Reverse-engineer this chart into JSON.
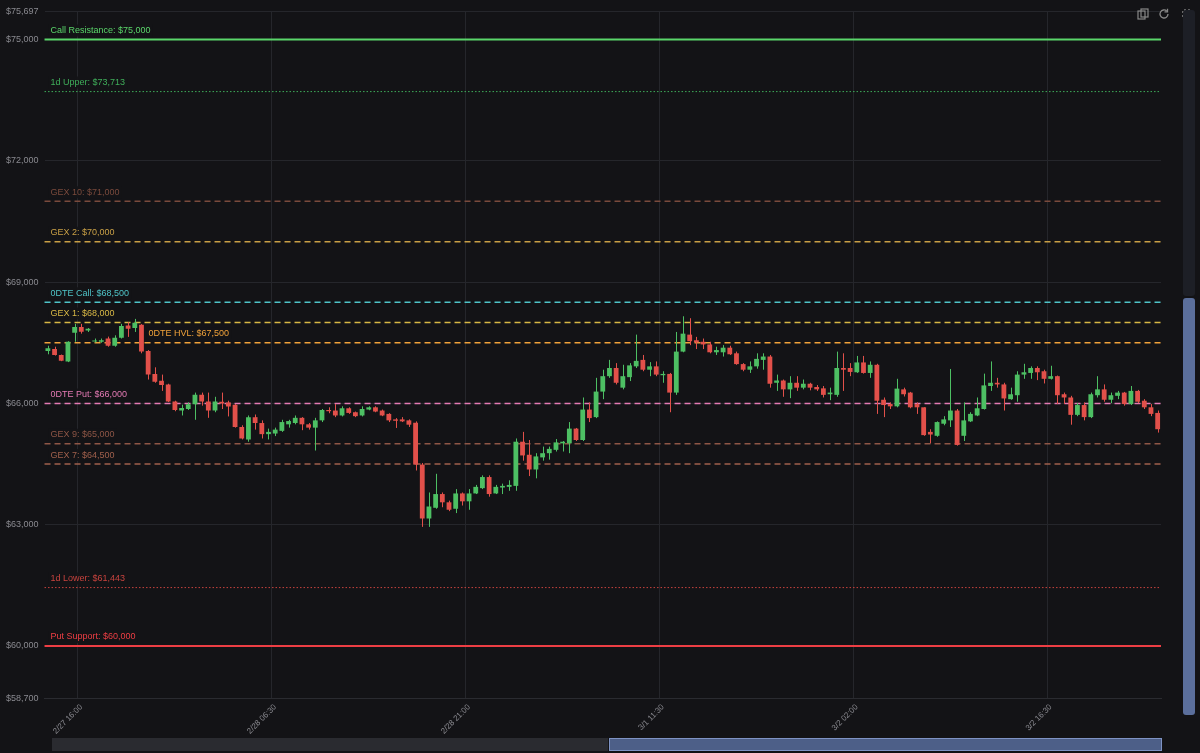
{
  "chart_data": {
    "type": "candlestick",
    "categories": [
      null,
      null,
      null,
      null,
      null,
      "2/27 16:00",
      null,
      null,
      null,
      null,
      null,
      null,
      null,
      null,
      null,
      null,
      null,
      null,
      null,
      null,
      null,
      null,
      null,
      null,
      null,
      null,
      null,
      null,
      null,
      null,
      null,
      null,
      null,
      null,
      "2/28 06:30",
      null,
      null,
      null,
      null,
      null,
      null,
      null,
      null,
      null,
      null,
      null,
      null,
      null,
      null,
      null,
      null,
      null,
      null,
      null,
      null,
      null,
      null,
      null,
      null,
      null,
      null,
      null,
      null,
      "2/28 21:00",
      null,
      null,
      null,
      null,
      null,
      null,
      null,
      null,
      null,
      null,
      null,
      null,
      null,
      null,
      null,
      null,
      null,
      null,
      null,
      null,
      null,
      null,
      null,
      null,
      null,
      null,
      null,
      null,
      "3/1 11:30",
      null,
      null,
      null,
      null,
      null,
      null,
      null,
      null,
      null,
      null,
      null,
      null,
      null,
      null,
      null,
      null,
      null,
      null,
      null,
      null,
      null,
      null,
      null,
      null,
      null,
      null,
      null,
      null,
      "3/2 02:00",
      null,
      null,
      null,
      null,
      null,
      null,
      null,
      null,
      null,
      null,
      null,
      null,
      null,
      null,
      null,
      null,
      null,
      null,
      null,
      null,
      null,
      null,
      null,
      null,
      null,
      null,
      null,
      null,
      "3/2 16:30",
      null,
      null,
      null,
      null,
      null,
      null,
      null,
      null,
      null,
      null,
      null,
      null,
      null,
      null,
      null,
      null
    ],
    "ohlc": [
      [
        67295,
        67426,
        67215,
        67361
      ],
      [
        67344,
        67402,
        67183,
        67198
      ],
      [
        67198,
        67208,
        67045,
        67052
      ],
      [
        67038,
        67538,
        67021,
        67524
      ],
      [
        67750,
        67968,
        67524,
        67888
      ],
      [
        67888,
        67968,
        67725,
        67774
      ],
      [
        67805,
        67864,
        67767,
        67847
      ],
      [
        67531,
        67604,
        67507,
        67555
      ],
      [
        67524,
        67604,
        67500,
        67562
      ],
      [
        67604,
        67652,
        67402,
        67426
      ],
      [
        67426,
        67684,
        67402,
        67621
      ],
      [
        67621,
        67968,
        67604,
        67912
      ],
      [
        67927,
        68010,
        67645,
        67847
      ],
      [
        67864,
        68090,
        67767,
        67993
      ],
      [
        67944,
        67961,
        67239,
        67281
      ],
      [
        67295,
        67319,
        66590,
        66712
      ],
      [
        66729,
        66892,
        66510,
        66535
      ],
      [
        66559,
        66712,
        66309,
        66454
      ],
      [
        66469,
        66486,
        66032,
        66049
      ],
      [
        66049,
        66066,
        65806,
        65837
      ],
      [
        65823,
        65968,
        65701,
        65886
      ],
      [
        65861,
        66024,
        65837,
        65976
      ],
      [
        65976,
        66267,
        65594,
        66211
      ],
      [
        66211,
        66267,
        65944,
        66049
      ],
      [
        66049,
        66267,
        65643,
        65823
      ],
      [
        65823,
        66163,
        65781,
        66049
      ],
      [
        66041,
        66267,
        65861,
        66000
      ],
      [
        66024,
        66066,
        65677,
        65920
      ],
      [
        65968,
        65983,
        65400,
        65417
      ],
      [
        65417,
        65458,
        65108,
        65132
      ],
      [
        65108,
        65701,
        65052,
        65660
      ],
      [
        65660,
        65725,
        65351,
        65514
      ],
      [
        65514,
        65580,
        65132,
        65239
      ],
      [
        65239,
        65376,
        65108,
        65295
      ],
      [
        65254,
        65400,
        65191,
        65351
      ],
      [
        65320,
        65594,
        65295,
        65538
      ],
      [
        65482,
        65594,
        65400,
        65563
      ],
      [
        65514,
        65701,
        65482,
        65643
      ],
      [
        65643,
        65660,
        65337,
        65482
      ],
      [
        65482,
        65514,
        65351,
        65400
      ],
      [
        65400,
        65643,
        64834,
        65580
      ],
      [
        65580,
        65861,
        65538,
        65837
      ],
      [
        65837,
        65903,
        65757,
        65806
      ],
      [
        65823,
        65983,
        65660,
        65701
      ],
      [
        65701,
        65927,
        65677,
        65879
      ],
      [
        65879,
        65903,
        65740,
        65764
      ],
      [
        65781,
        65798,
        65660,
        65684
      ],
      [
        65701,
        65927,
        65677,
        65861
      ],
      [
        65847,
        65927,
        65830,
        65903
      ],
      [
        65903,
        65927,
        65781,
        65798
      ],
      [
        65823,
        65847,
        65684,
        65701
      ],
      [
        65740,
        65757,
        65538,
        65580
      ],
      [
        65604,
        65636,
        65392,
        65570
      ],
      [
        65604,
        65660,
        65538,
        65555
      ],
      [
        65580,
        65604,
        65417,
        65473
      ],
      [
        65521,
        65555,
        64340,
        64486
      ],
      [
        64486,
        64525,
        62945,
        63150
      ],
      [
        63150,
        63796,
        62945,
        63449
      ],
      [
        63417,
        64258,
        63393,
        63757
      ],
      [
        63757,
        63796,
        63431,
        63553
      ],
      [
        63553,
        63594,
        63334,
        63368
      ],
      [
        63393,
        63879,
        63286,
        63772
      ],
      [
        63772,
        63796,
        63473,
        63577
      ],
      [
        63577,
        63879,
        63368,
        63772
      ],
      [
        63772,
        63983,
        63757,
        63935
      ],
      [
        63903,
        64219,
        63879,
        64178
      ],
      [
        64178,
        64219,
        63692,
        63757
      ],
      [
        63772,
        63983,
        63757,
        63935
      ],
      [
        63918,
        64015,
        63757,
        63959
      ],
      [
        63935,
        64097,
        63837,
        63983
      ],
      [
        63959,
        65132,
        63837,
        65052
      ],
      [
        65052,
        65295,
        64583,
        64712
      ],
      [
        64729,
        65094,
        64202,
        64365
      ],
      [
        64365,
        64768,
        64146,
        64688
      ],
      [
        64664,
        64931,
        64583,
        64768
      ],
      [
        64768,
        64931,
        64608,
        64875
      ],
      [
        64851,
        65118,
        64809,
        65035
      ],
      [
        65011,
        65069,
        64809,
        65052
      ],
      [
        65011,
        65538,
        64768,
        65376
      ],
      [
        65376,
        65392,
        65069,
        65094
      ],
      [
        65094,
        66146,
        65069,
        65847
      ],
      [
        65847,
        66024,
        65538,
        65636
      ],
      [
        65660,
        66632,
        65636,
        66292
      ],
      [
        66292,
        66833,
        66104,
        66673
      ],
      [
        66673,
        67076,
        66632,
        66875
      ],
      [
        66875,
        66996,
        66469,
        66510
      ],
      [
        66389,
        66955,
        66347,
        66673
      ],
      [
        66649,
        66996,
        66552,
        66940
      ],
      [
        66916,
        67701,
        66875,
        67052
      ],
      [
        67076,
        67198,
        66795,
        66833
      ],
      [
        66833,
        67021,
        66673,
        66916
      ],
      [
        66916,
        67038,
        66673,
        66712
      ],
      [
        66697,
        66795,
        66510,
        66729
      ],
      [
        66729,
        66753,
        65781,
        66267
      ],
      [
        66267,
        67767,
        66211,
        67281
      ],
      [
        67281,
        68155,
        67264,
        67725
      ],
      [
        67701,
        68107,
        67441,
        67538
      ],
      [
        67562,
        67645,
        67344,
        67507
      ],
      [
        67524,
        67604,
        67344,
        67458
      ],
      [
        67458,
        67524,
        67239,
        67264
      ],
      [
        67264,
        67402,
        67198,
        67319
      ],
      [
        67264,
        67441,
        67159,
        67378
      ],
      [
        67378,
        67426,
        67198,
        67215
      ],
      [
        67239,
        67281,
        66955,
        66972
      ],
      [
        66972,
        66996,
        66795,
        66833
      ],
      [
        66833,
        67038,
        66753,
        66916
      ],
      [
        66916,
        67239,
        66858,
        67101
      ],
      [
        67076,
        67239,
        66833,
        67159
      ],
      [
        67159,
        67198,
        66389,
        66486
      ],
      [
        66510,
        66712,
        66309,
        66566
      ],
      [
        66566,
        66590,
        66163,
        66347
      ],
      [
        66347,
        66673,
        66129,
        66510
      ],
      [
        66510,
        66673,
        66309,
        66389
      ],
      [
        66389,
        66590,
        66347,
        66486
      ],
      [
        66486,
        66510,
        66323,
        66389
      ],
      [
        66406,
        66454,
        66309,
        66347
      ],
      [
        66372,
        66430,
        66146,
        66211
      ],
      [
        66226,
        66389,
        66080,
        66267
      ],
      [
        66211,
        67281,
        66163,
        66875
      ],
      [
        66875,
        67239,
        66309,
        66833
      ],
      [
        66875,
        66996,
        66673,
        66778
      ],
      [
        66770,
        67174,
        66753,
        67013
      ],
      [
        67013,
        67174,
        66736,
        66753
      ],
      [
        66753,
        67038,
        66632,
        66955
      ],
      [
        66955,
        66979,
        65740,
        66066
      ],
      [
        66090,
        66146,
        65660,
        65959
      ],
      [
        65983,
        66024,
        65861,
        65927
      ],
      [
        65927,
        66608,
        65903,
        66365
      ],
      [
        66347,
        66389,
        66170,
        66226
      ],
      [
        66267,
        66284,
        65879,
        65903
      ],
      [
        65983,
        66024,
        65740,
        65903
      ],
      [
        65903,
        65903,
        65198,
        65215
      ],
      [
        65295,
        65361,
        65011,
        65230
      ],
      [
        65198,
        65555,
        65174,
        65538
      ],
      [
        65497,
        65684,
        65458,
        65604
      ],
      [
        65580,
        66851,
        65417,
        65823
      ],
      [
        65823,
        65861,
        64955,
        64972
      ],
      [
        65198,
        66024,
        65069,
        65580
      ],
      [
        65555,
        65781,
        65538,
        65740
      ],
      [
        65701,
        66146,
        65684,
        65879
      ],
      [
        65861,
        66736,
        65847,
        66445
      ],
      [
        66430,
        67038,
        66309,
        66510
      ],
      [
        66510,
        66632,
        66389,
        66469
      ],
      [
        66469,
        66510,
        65823,
        66122
      ],
      [
        66104,
        66389,
        66090,
        66226
      ],
      [
        66202,
        66795,
        66041,
        66712
      ],
      [
        66712,
        66979,
        66608,
        66770
      ],
      [
        66753,
        66916,
        66608,
        66875
      ],
      [
        66875,
        66916,
        66576,
        66770
      ],
      [
        66795,
        66833,
        66493,
        66608
      ],
      [
        66608,
        66931,
        66590,
        66673
      ],
      [
        66673,
        66688,
        65983,
        66202
      ],
      [
        66226,
        66267,
        65983,
        66146
      ],
      [
        66146,
        66187,
        65473,
        65716
      ],
      [
        65716,
        66007,
        65684,
        65959
      ],
      [
        65959,
        66024,
        65580,
        65660
      ],
      [
        65660,
        66267,
        65636,
        66226
      ],
      [
        66202,
        66673,
        66146,
        66347
      ],
      [
        66347,
        66469,
        66041,
        66090
      ],
      [
        66090,
        66267,
        66007,
        66202
      ],
      [
        66187,
        66309,
        66104,
        66267
      ],
      [
        66267,
        66284,
        65944,
        65983
      ],
      [
        65983,
        66430,
        65959,
        66309
      ],
      [
        66309,
        66333,
        66007,
        66041
      ],
      [
        66066,
        66104,
        65861,
        65903
      ],
      [
        65903,
        65983,
        65684,
        65740
      ],
      [
        65764,
        65823,
        65278,
        65361
      ]
    ],
    "colors": [
      "#4dbf63",
      "#e2504a",
      "#e2504a",
      "#4dbf63",
      "#4dbf63",
      "#e2504a",
      "#4dbf63",
      "#4dbf63",
      "#4dbf63",
      "#e2504a",
      "#4dbf63",
      "#4dbf63",
      "#e2504a",
      "#4dbf63",
      "#e2504a",
      "#e2504a",
      "#e2504a",
      "#e2504a",
      "#e2504a",
      "#e2504a",
      "#4dbf63",
      "#4dbf63",
      "#4dbf63",
      "#e2504a",
      "#e2504a",
      "#4dbf63",
      "#e2504a",
      "#e2504a",
      "#e2504a",
      "#e2504a",
      "#4dbf63",
      "#e2504a",
      "#e2504a",
      "#4dbf63",
      "#4dbf63",
      "#4dbf63",
      "#4dbf63",
      "#4dbf63",
      "#e2504a",
      "#e2504a",
      "#4dbf63",
      "#4dbf63",
      "#e2504a",
      "#e2504a",
      "#4dbf63",
      "#e2504a",
      "#e2504a",
      "#4dbf63",
      "#4dbf63",
      "#e2504a",
      "#e2504a",
      "#e2504a",
      "#e2504a",
      "#e2504a",
      "#e2504a",
      "#e2504a",
      "#e2504a",
      "#4dbf63",
      "#4dbf63",
      "#e2504a",
      "#e2504a",
      "#4dbf63",
      "#e2504a",
      "#4dbf63",
      "#4dbf63",
      "#4dbf63",
      "#e2504a",
      "#4dbf63",
      "#4dbf63",
      "#4dbf63",
      "#4dbf63",
      "#e2504a",
      "#e2504a",
      "#4dbf63",
      "#4dbf63",
      "#4dbf63",
      "#4dbf63",
      "#4dbf63",
      "#4dbf63",
      "#e2504a",
      "#4dbf63",
      "#e2504a",
      "#4dbf63",
      "#4dbf63",
      "#4dbf63",
      "#e2504a",
      "#4dbf63",
      "#4dbf63",
      "#4dbf63",
      "#e2504a",
      "#4dbf63",
      "#e2504a",
      "#4dbf63",
      "#e2504a",
      "#4dbf63",
      "#4dbf63",
      "#e2504a",
      "#e2504a",
      "#e2504a",
      "#e2504a",
      "#4dbf63",
      "#4dbf63",
      "#e2504a",
      "#e2504a",
      "#e2504a",
      "#4dbf63",
      "#4dbf63",
      "#4dbf63",
      "#e2504a",
      "#4dbf63",
      "#e2504a",
      "#4dbf63",
      "#e2504a",
      "#4dbf63",
      "#e2504a",
      "#e2504a",
      "#e2504a",
      "#4dbf63",
      "#4dbf63",
      "#e2504a",
      "#e2504a",
      "#4dbf63",
      "#e2504a",
      "#4dbf63",
      "#e2504a",
      "#e2504a",
      "#e2504a",
      "#4dbf63",
      "#e2504a",
      "#e2504a",
      "#e2504a",
      "#e2504a",
      "#e2504a",
      "#4dbf63",
      "#4dbf63",
      "#4dbf63",
      "#e2504a",
      "#4dbf63",
      "#4dbf63",
      "#4dbf63",
      "#4dbf63",
      "#4dbf63",
      "#e2504a",
      "#e2504a",
      "#4dbf63",
      "#4dbf63",
      "#4dbf63",
      "#4dbf63",
      "#e2504a",
      "#e2504a",
      "#4dbf63",
      "#e2504a",
      "#e2504a",
      "#e2504a",
      "#4dbf63",
      "#e2504a",
      "#4dbf63",
      "#4dbf63",
      "#e2504a",
      "#4dbf63",
      "#4dbf63",
      "#e2504a",
      "#4dbf63",
      "#e2504a",
      "#e2504a",
      "#e2504a",
      "#e2504a"
    ],
    "ylim": [
      58700,
      75697
    ],
    "yticks": [
      {
        "value": 58700,
        "label": "$58,700"
      },
      {
        "value": 60000,
        "label": "$60,000"
      },
      {
        "value": 63000,
        "label": "$63,000"
      },
      {
        "value": 66000,
        "label": "$66,000"
      },
      {
        "value": 69000,
        "label": "$69,000"
      },
      {
        "value": 72000,
        "label": "$72,000"
      },
      {
        "value": 75000,
        "label": "$75,000"
      },
      {
        "value": 75697,
        "label": "$75,697"
      }
    ],
    "grid": true,
    "ref_lines": [
      {
        "axis": "y",
        "value": 75000,
        "label": "Call Resistance: $75,000",
        "color": "#5ad66a",
        "line_style": "solid"
      },
      {
        "axis": "y",
        "value": 73713,
        "label": "1d Upper: $73,713",
        "color": "#3fae5a",
        "line_style": "dotted"
      },
      {
        "axis": "y",
        "value": 71000,
        "label": "GEX 10: $71,000",
        "color": "#7a4a3c",
        "line_style": "dashed"
      },
      {
        "axis": "y",
        "value": 70000,
        "label": "GEX 2: $70,000",
        "color": "#c9a046",
        "line_style": "dashed"
      },
      {
        "axis": "y",
        "value": 68500,
        "label": "0DTE Call: $68,500",
        "color": "#4fc4c8",
        "line_style": "dashed"
      },
      {
        "axis": "y",
        "value": 68000,
        "label": "GEX 1: $68,000",
        "color": "#d8b845",
        "line_style": "dashed"
      },
      {
        "axis": "y",
        "value": 67500,
        "label": "0DTE HVL: $67,500",
        "color": "#f0a23a",
        "line_style": "dashed"
      },
      {
        "axis": "y",
        "value": 66000,
        "label": "0DTE Put: $66,000",
        "color": "#e47ab4",
        "line_style": "dashed"
      },
      {
        "axis": "y",
        "value": 65000,
        "label": "GEX 9: $65,000",
        "color": "#8e5646",
        "line_style": "dashed"
      },
      {
        "axis": "y",
        "value": 64500,
        "label": "GEX 7: $64,500",
        "color": "#a0604c",
        "line_style": "dashed"
      },
      {
        "axis": "y",
        "value": 61443,
        "label": "1d Lower: $61,443",
        "color": "#c8433e",
        "line_style": "dotted"
      },
      {
        "axis": "y",
        "value": 60000,
        "label": "Put Support: $60,000",
        "color": "#ee3e44",
        "line_style": "solid"
      }
    ]
  }
}
